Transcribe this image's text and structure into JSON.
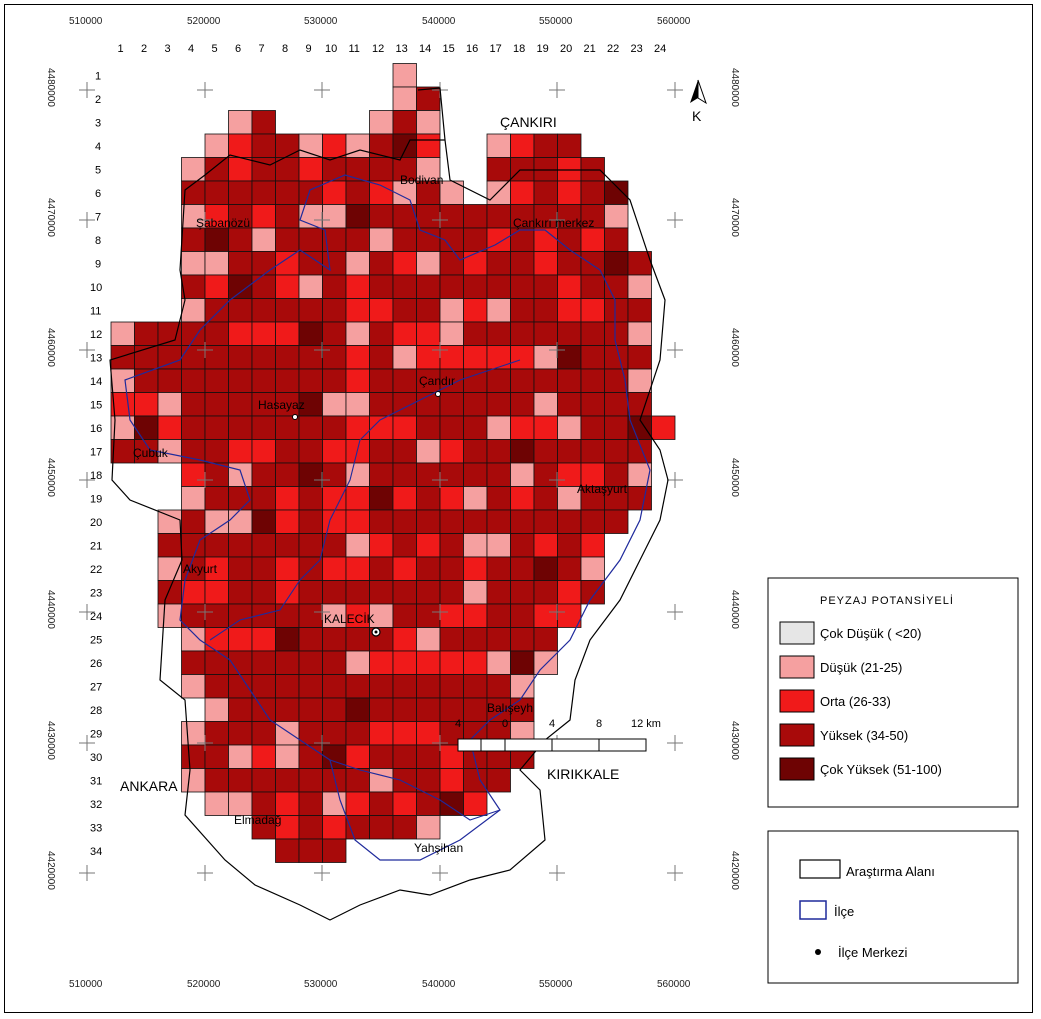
{
  "map": {
    "x_ticks": [
      "510000",
      "520000",
      "530000",
      "540000",
      "550000",
      "560000"
    ],
    "y_ticks": [
      "4480000",
      "4470000",
      "4460000",
      "4450000",
      "4440000",
      "4430000",
      "4420000"
    ],
    "column_numbers": [
      "1",
      "2",
      "3",
      "4",
      "5",
      "6",
      "7",
      "8",
      "9",
      "10",
      "11",
      "12",
      "13",
      "14",
      "15",
      "16",
      "17",
      "18",
      "19",
      "20",
      "21",
      "22",
      "23",
      "24"
    ],
    "row_numbers": [
      "1",
      "2",
      "3",
      "4",
      "5",
      "6",
      "7",
      "8",
      "9",
      "10",
      "11",
      "12",
      "13",
      "14",
      "15",
      "16",
      "17",
      "18",
      "19",
      "20",
      "21",
      "22",
      "23",
      "24",
      "25",
      "26",
      "27",
      "28",
      "29",
      "30",
      "31",
      "32",
      "33",
      "34"
    ],
    "regions": {
      "north": "ÇANKIRI",
      "west": "ANKARA",
      "east": "KIRIKKALE"
    },
    "places": {
      "bodivan": "Bodivan",
      "sabanozu": "Şabanözü",
      "cankiri_merkez": "Çankırı merkez",
      "hasayaz": "Hasayaz",
      "cangir": "Çandır",
      "cubuk": "Çubuk",
      "aktasyurt": "Aktaşyurt",
      "akyurt": "Akyurt",
      "kalecik": "KALECİK",
      "balliseyh": "Balışeyh",
      "elmadag": "Elmadağ",
      "yahsihan": "Yahşihan"
    },
    "north_arrow_label": "K",
    "colors": {
      "cok_dusuk": "#e6e6e6",
      "dusuk": "#f5a0a0",
      "orta": "#f01a1a",
      "yuksek": "#a80a0a",
      "cok_yuksek": "#6e0303",
      "ilce": "#1f2a9c",
      "arastirma": "#000000"
    }
  },
  "legend": {
    "title": "PEYZAJ POTANSİYELİ",
    "classes": [
      {
        "label": "Çok Düşük ( <20)",
        "color": "#e6e6e6"
      },
      {
        "label": "Düşük (21-25)",
        "color": "#f5a0a0"
      },
      {
        "label": "Orta (26-33)",
        "color": "#f01a1a"
      },
      {
        "label": "Yüksek (34-50)",
        "color": "#a80a0a"
      },
      {
        "label": "Çok Yüksek (51-100)",
        "color": "#6e0303"
      }
    ],
    "lines": {
      "arastirma": "Araştırma Alanı",
      "ilce": "İlçe",
      "ilce_merkezi": "İlçe Merkezi"
    }
  },
  "scale": {
    "ticks": [
      "4",
      "0",
      "4",
      "8",
      "12 km"
    ]
  }
}
